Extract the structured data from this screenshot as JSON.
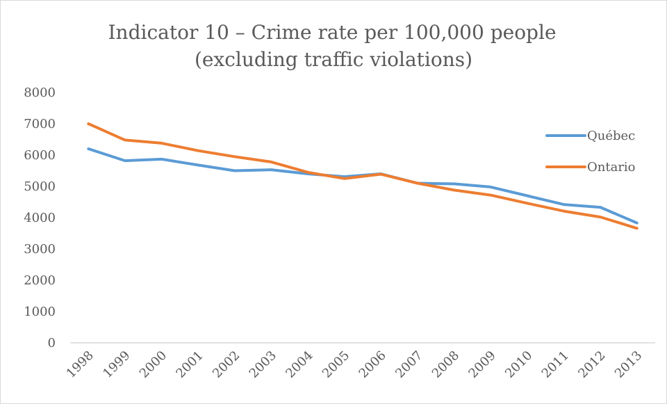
{
  "chart_data": {
    "type": "line",
    "title": "Indicator 10 – Crime rate per 100,000 people",
    "subtitle": "(excluding traffic violations)",
    "xlabel": "",
    "ylabel": "",
    "categories": [
      "1998",
      "1999",
      "2000",
      "2001",
      "2002",
      "2003",
      "2004",
      "2005",
      "2006",
      "2007",
      "2008",
      "2009",
      "2010",
      "2011",
      "2012",
      "2013"
    ],
    "ylim": [
      0,
      8000
    ],
    "yticks": [
      0,
      1000,
      2000,
      3000,
      4000,
      5000,
      6000,
      7000,
      8000
    ],
    "grid": false,
    "legend_position": "right",
    "series": [
      {
        "name": "Québec",
        "color": "#5b9bd5",
        "values": [
          6200,
          5820,
          5870,
          5680,
          5500,
          5530,
          5400,
          5310,
          5400,
          5100,
          5080,
          4980,
          4700,
          4420,
          4330,
          3830
        ]
      },
      {
        "name": "Ontario",
        "color": "#ed7d31",
        "values": [
          7000,
          6480,
          6380,
          6140,
          5950,
          5780,
          5450,
          5250,
          5390,
          5100,
          4880,
          4720,
          4460,
          4210,
          4020,
          3660
        ]
      }
    ]
  }
}
